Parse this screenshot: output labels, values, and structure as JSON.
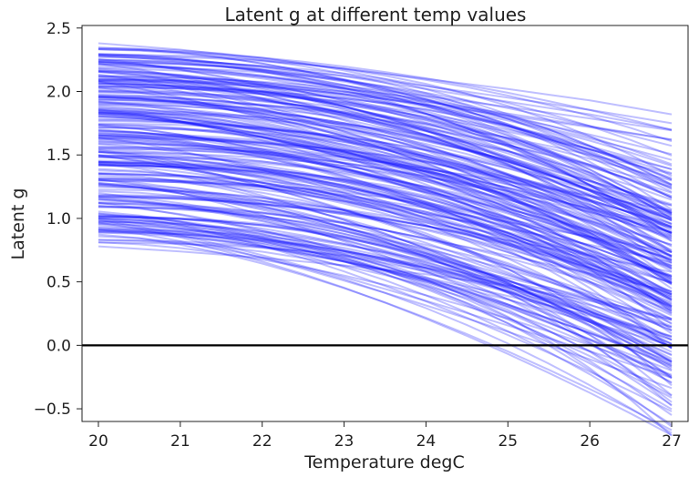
{
  "chart_data": {
    "type": "line",
    "title": "Latent g at different temp values",
    "xlabel": "Temperature degC",
    "ylabel": "Latent g",
    "xlim": [
      19.8,
      27.2
    ],
    "ylim": [
      -0.6,
      2.52
    ],
    "xticks": [
      20,
      21,
      22,
      23,
      24,
      25,
      26,
      27
    ],
    "xtick_labels": [
      "20",
      "21",
      "22",
      "23",
      "24",
      "25",
      "26",
      "27"
    ],
    "yticks": [
      -0.5,
      0.0,
      0.5,
      1.0,
      1.5,
      2.0,
      2.5
    ],
    "ytick_labels": [
      "−0.5",
      "0.0",
      "0.5",
      "1.0",
      "1.5",
      "2.0",
      "2.5"
    ],
    "grid": false,
    "reference_line": {
      "y": 0.0,
      "color": "#000000"
    },
    "series_color": "#1a1aff",
    "series_opacity": 0.28,
    "series_count": 240,
    "x_samples": [
      20,
      20.5,
      21,
      21.5,
      22,
      22.5,
      23,
      23.5,
      24,
      24.5,
      25,
      25.5,
      26,
      26.5,
      27
    ],
    "series_summary": {
      "start_range_at_20": [
        0.78,
        2.38
      ],
      "end_range_at_27": [
        -0.47,
        1.82
      ],
      "representative": [
        {
          "x": [
            20,
            21,
            22,
            23,
            24,
            25,
            26,
            27
          ],
          "y": [
            2.38,
            2.33,
            2.26,
            2.18,
            2.1,
            2.02,
            1.93,
            1.82
          ]
        },
        {
          "x": [
            20,
            21,
            22,
            23,
            24,
            25,
            26,
            27
          ],
          "y": [
            2.28,
            2.25,
            2.2,
            2.12,
            2.02,
            1.92,
            1.82,
            1.7
          ]
        },
        {
          "x": [
            20,
            21,
            22,
            23,
            24,
            25,
            26,
            27
          ],
          "y": [
            1.5,
            1.4,
            1.28,
            1.15,
            1.0,
            0.86,
            0.72,
            0.55
          ]
        },
        {
          "x": [
            20,
            21,
            22,
            23,
            24,
            25,
            26,
            27
          ],
          "y": [
            1.2,
            1.12,
            1.02,
            0.9,
            0.76,
            0.6,
            0.4,
            0.15
          ]
        },
        {
          "x": [
            20,
            21,
            22,
            23,
            24,
            25,
            26,
            27
          ],
          "y": [
            0.95,
            0.9,
            0.8,
            0.66,
            0.5,
            0.3,
            0.05,
            -0.2
          ]
        },
        {
          "x": [
            20,
            21,
            22,
            23,
            24,
            25,
            26,
            27
          ],
          "y": [
            1.0,
            0.92,
            0.82,
            0.68,
            0.5,
            0.28,
            -0.05,
            -0.47
          ]
        },
        {
          "x": [
            20,
            21,
            22,
            23,
            24,
            25,
            26,
            27
          ],
          "y": [
            0.78,
            0.74,
            0.69,
            0.63,
            0.56,
            0.47,
            0.35,
            0.2
          ]
        }
      ]
    }
  }
}
